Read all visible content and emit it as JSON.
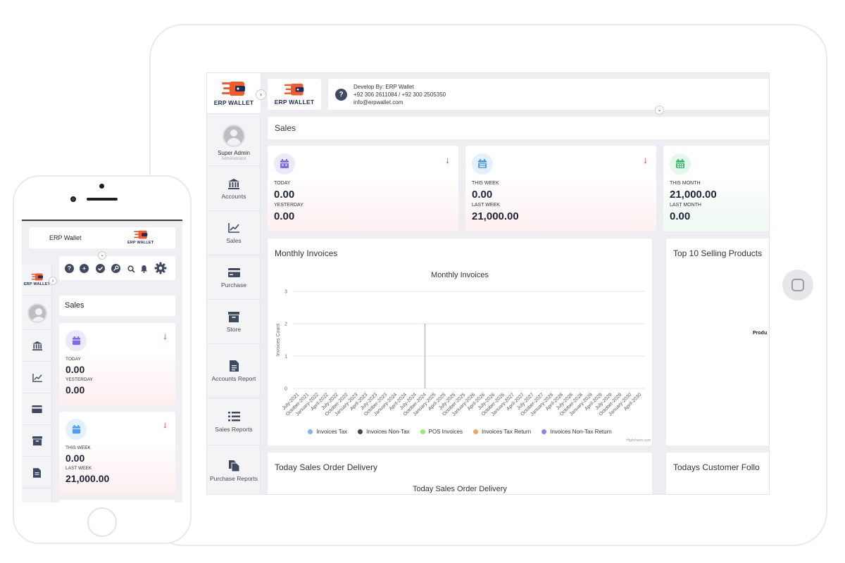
{
  "brand": {
    "logo_text": "ERP WALLET",
    "accent": "#f25a2c",
    "navy": "#1e2d5c"
  },
  "header": {
    "develop_label": "Develop By:",
    "develop_value": "ERP Wallet",
    "phones": "+92 306 2611084 / +92 300 2505350",
    "email": "info@erpwallet.com",
    "help_icon": "?"
  },
  "user": {
    "name": "Super Admin",
    "role": "Administrator"
  },
  "sidebar": {
    "toggle": "›",
    "items": [
      {
        "label": "Accounts",
        "icon": "bank-icon"
      },
      {
        "label": "Sales",
        "icon": "chart-line-icon"
      },
      {
        "label": "Purchase",
        "icon": "card-icon"
      },
      {
        "label": "Store",
        "icon": "archive-icon"
      },
      {
        "label": "Accounts Report",
        "icon": "document-icon"
      },
      {
        "label": "Sales Reports",
        "icon": "list-icon"
      },
      {
        "label": "Purchase Reports",
        "icon": "files-icon"
      }
    ]
  },
  "page": {
    "title": "Sales",
    "expand": "⌄"
  },
  "cards": [
    {
      "k1": "TODAY",
      "v1": "0.00",
      "k2": "YESTERDAY",
      "v2": "0.00",
      "arrow": "↓",
      "color": "#7b6cf0"
    },
    {
      "k1": "THIS WEEK",
      "v1": "0.00",
      "k2": "LAST WEEK",
      "v2": "21,000.00",
      "arrow": "↓",
      "color": "#4a9ff0"
    },
    {
      "k1": "THIS MONTH",
      "v1": "21,000.00",
      "k2": "LAST MONTH",
      "v2": "0.00",
      "arrow": "",
      "color": "#35c46a"
    }
  ],
  "panels": {
    "monthly": "Monthly Invoices",
    "top10": "Top 10 Selling Products",
    "top10_partial": "Produ",
    "delivery": "Today Sales Order Delivery",
    "followup": "Todays Customer Follo"
  },
  "chart_data": {
    "type": "line",
    "title": "Monthly Invoices",
    "ylabel": "Invoices Count",
    "xlabel": "",
    "ylim": [
      0,
      3
    ],
    "yticks": [
      "0",
      "1",
      "2",
      "3"
    ],
    "categories": [
      "July-2021",
      "October-2021",
      "January-2022",
      "April-2022",
      "July-2022",
      "October-2022",
      "January-2023",
      "April-2023",
      "July-2023",
      "October-2023",
      "January-2024",
      "April-2024",
      "July-2024",
      "October-2024",
      "January-2025",
      "April-2025",
      "July-2025",
      "October-2025",
      "January-2026",
      "April-2026",
      "July-2026",
      "October-2026",
      "January-2027",
      "April-2027",
      "July-2027",
      "October-2027",
      "January-2028",
      "April-2028",
      "July-2028",
      "October-2028",
      "January-2029",
      "April-2029",
      "July-2029",
      "October-2029",
      "January-2030",
      "April-2030"
    ],
    "series": [
      {
        "name": "Invoices Tax",
        "color": "#7cb5ec",
        "spike_category": "October-2024",
        "spike_value": 2
      },
      {
        "name": "Invoices Non-Tax",
        "color": "#434348"
      },
      {
        "name": "POS Invoices",
        "color": "#90ed7d"
      },
      {
        "name": "Invoices Tax Return",
        "color": "#f7a35c"
      },
      {
        "name": "Invoices Non-Tax Return",
        "color": "#8085e9"
      }
    ],
    "credit": "Highcharts.com",
    "legend": "bottom-center"
  },
  "delivery_chart": {
    "title": "Today Sales Order Delivery"
  },
  "phone": {
    "app_title": "ERP Wallet",
    "logo_text": "ERP WALLET",
    "sales_title": "Sales",
    "icons": [
      "?",
      "+"
    ],
    "cards": [
      {
        "k1": "TODAY",
        "v1": "0.00",
        "k2": "YESTERDAY",
        "v2": "0.00",
        "arrow": "↓"
      },
      {
        "k1": "THIS WEEK",
        "v1": "0.00",
        "k2": "LAST WEEK",
        "v2": "21,000.00",
        "arrow": "↓"
      }
    ]
  }
}
